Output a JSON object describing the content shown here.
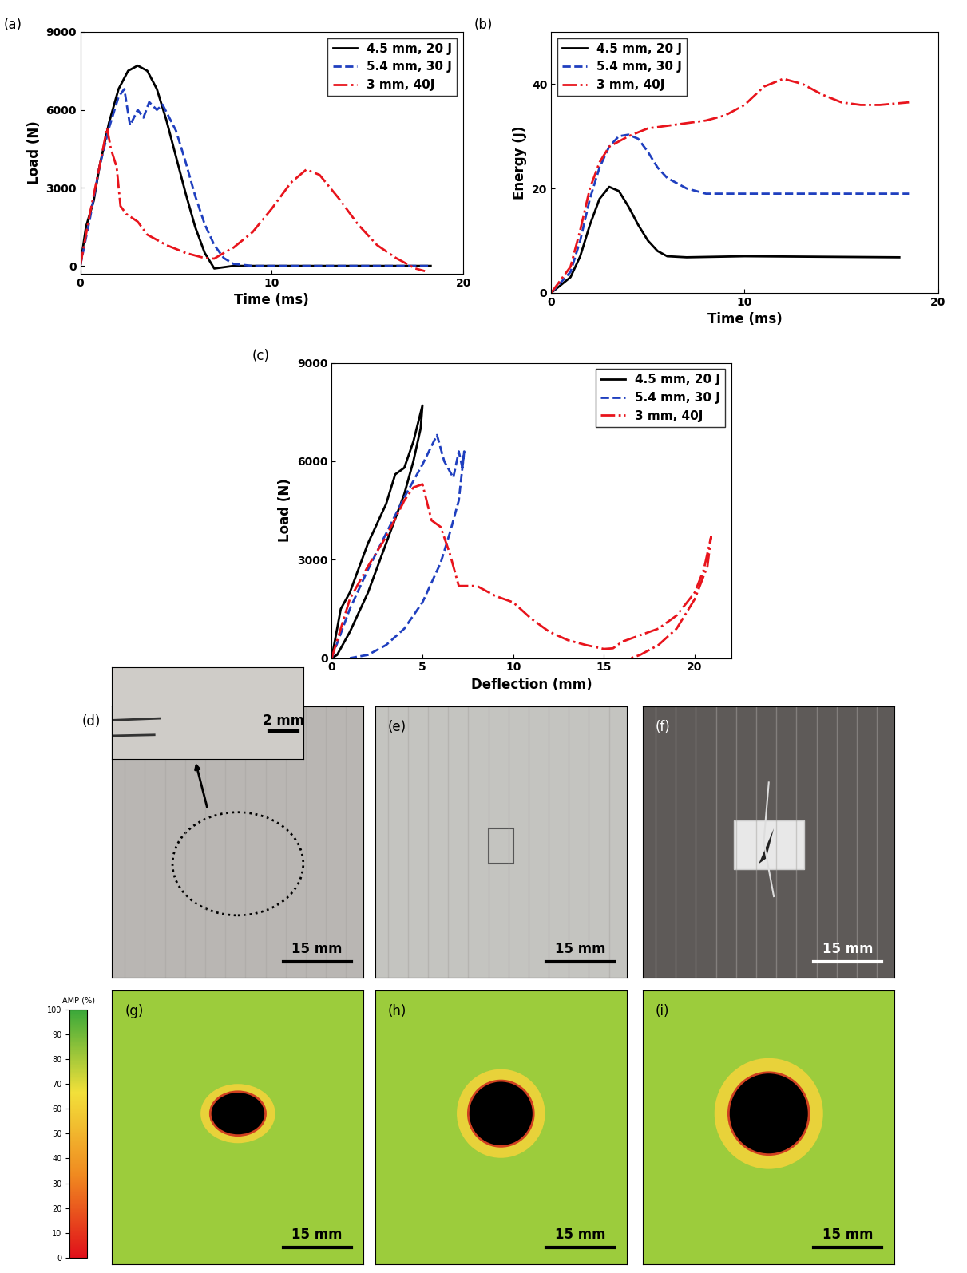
{
  "chart_data": [
    {
      "type": "line",
      "title": "(a)",
      "x_label": "Time (ms)",
      "y_label": "Load (N)",
      "xlim": [
        0,
        20
      ],
      "ylim": [
        -300,
        9000
      ],
      "xticks": [
        0,
        10,
        20
      ],
      "yticks": [
        0,
        3000,
        6000,
        9000
      ],
      "legend": "upper right",
      "series": [
        {
          "name": "4.5 mm, 20 J",
          "color": "#000000",
          "line_style": "solid",
          "x": [
            0,
            0.3,
            0.7,
            1,
            1.5,
            2,
            2.5,
            3,
            3.5,
            4,
            4.5,
            5,
            5.5,
            6,
            6.5,
            7,
            7.5,
            8,
            10,
            15,
            18.3
          ],
          "values": [
            0,
            1500,
            2500,
            3800,
            5500,
            6800,
            7500,
            7700,
            7500,
            6800,
            5600,
            4200,
            2800,
            1500,
            500,
            -100,
            -50,
            0,
            0,
            0,
            0
          ]
        },
        {
          "name": "5.4 mm, 30 J",
          "color": "#1f3fbf",
          "line_style": "dashed",
          "x": [
            0,
            0.5,
            1,
            1.5,
            2,
            2.3,
            2.6,
            3,
            3.3,
            3.6,
            4,
            4.3,
            5,
            5.5,
            6,
            6.5,
            7,
            7.5,
            8,
            9,
            18.3
          ],
          "values": [
            0,
            1800,
            3800,
            5300,
            6500,
            6800,
            5400,
            6000,
            5700,
            6300,
            6000,
            6200,
            5200,
            4000,
            2700,
            1600,
            800,
            300,
            80,
            0,
            0
          ]
        },
        {
          "name": "3 mm, 40J",
          "color": "#e8141c",
          "line_style": "dashdot",
          "x": [
            0,
            0.5,
            1,
            1.4,
            1.6,
            1.9,
            2.1,
            2.4,
            3,
            3.5,
            4.5,
            5.5,
            6.5,
            7,
            7.5,
            8,
            9,
            10,
            11,
            11.8,
            12.5,
            13.5,
            14.5,
            15.5,
            16.5,
            17.5,
            18
          ],
          "values": [
            0,
            2000,
            3800,
            5300,
            4500,
            3800,
            2300,
            2000,
            1700,
            1200,
            800,
            500,
            300,
            280,
            500,
            700,
            1300,
            2200,
            3200,
            3700,
            3500,
            2600,
            1600,
            800,
            300,
            -100,
            -200
          ]
        }
      ]
    },
    {
      "type": "line",
      "title": "(b)",
      "x_label": "Time (ms)",
      "y_label": "Energy (J)",
      "xlim": [
        0,
        20
      ],
      "ylim": [
        0,
        50
      ],
      "xticks": [
        0,
        10,
        20
      ],
      "yticks": [
        0,
        20,
        40
      ],
      "legend": "upper left",
      "series": [
        {
          "name": "4.5 mm, 20 J",
          "color": "#000000",
          "line_style": "solid",
          "x": [
            0,
            1,
            1.5,
            2,
            2.5,
            3,
            3.5,
            4,
            4.5,
            5,
            5.5,
            6,
            7,
            10,
            18
          ],
          "values": [
            0,
            3,
            7,
            13,
            18,
            20.3,
            19.5,
            16.5,
            13,
            10,
            8,
            7,
            6.8,
            7,
            6.8
          ]
        },
        {
          "name": "5.4 mm, 30 J",
          "color": "#1f3fbf",
          "line_style": "dashed",
          "x": [
            0,
            1,
            1.5,
            2,
            2.5,
            3,
            3.5,
            4,
            4.5,
            5,
            5.5,
            6,
            7,
            8,
            10,
            18.5
          ],
          "values": [
            0,
            4,
            10,
            18,
            24,
            28,
            30,
            30.3,
            29.5,
            27,
            24,
            22,
            20,
            19,
            19,
            19
          ]
        },
        {
          "name": "3 mm, 40J",
          "color": "#e8141c",
          "line_style": "dashdot",
          "x": [
            0,
            1,
            1.5,
            2,
            2.5,
            3,
            4,
            5,
            6,
            7,
            8,
            9,
            10,
            11,
            12,
            13,
            14,
            15,
            16,
            17,
            18.5
          ],
          "values": [
            0,
            5,
            12,
            20,
            25,
            28,
            30,
            31.5,
            32,
            32.5,
            33,
            34,
            36,
            39.5,
            41,
            40,
            38,
            36.5,
            36,
            36,
            36.5
          ]
        }
      ]
    },
    {
      "type": "line",
      "title": "(c)",
      "x_label": "Deflection (mm)",
      "y_label": "Load (N)",
      "xlim": [
        0,
        22
      ],
      "ylim": [
        0,
        9000
      ],
      "xticks": [
        0,
        5,
        10,
        15,
        20
      ],
      "yticks": [
        0,
        3000,
        6000,
        9000
      ],
      "legend": "upper right",
      "series": [
        {
          "name": "4.5 mm, 20 J",
          "color": "#000000",
          "line_style": "solid",
          "x": [
            0,
            0.5,
            1,
            2,
            3,
            3.5,
            4,
            4.5,
            5,
            4.9,
            4.5,
            4,
            3,
            2,
            1,
            0.3,
            0
          ],
          "values": [
            0,
            1500,
            2000,
            3500,
            4700,
            5600,
            5800,
            6600,
            7700,
            7000,
            6000,
            5000,
            3500,
            2000,
            800,
            100,
            0
          ]
        },
        {
          "name": "5.4 mm, 30 J",
          "color": "#1f3fbf",
          "line_style": "dashed",
          "x": [
            0,
            1,
            2,
            3,
            4,
            5,
            5.8,
            6.2,
            6.7,
            7,
            7.2,
            7.3,
            7,
            6.5,
            6,
            5,
            4,
            3,
            2,
            1
          ],
          "values": [
            0,
            1500,
            2700,
            3800,
            4900,
            5900,
            6800,
            6000,
            5500,
            6300,
            5800,
            6300,
            4800,
            3800,
            2900,
            1700,
            900,
            400,
            100,
            0
          ]
        },
        {
          "name": "3 mm, 40J",
          "color": "#e8141c",
          "line_style": "dashdot",
          "x": [
            0,
            1,
            2,
            3,
            4,
            4.5,
            5,
            5.5,
            6,
            6.5,
            7,
            8,
            9,
            10,
            11,
            12,
            13,
            14,
            15,
            15.5,
            16,
            17,
            18,
            19,
            20,
            20.5,
            20.9,
            20.7,
            20,
            19,
            18,
            17,
            16.5
          ],
          "values": [
            0,
            1800,
            2800,
            3700,
            4800,
            5200,
            5300,
            4200,
            4000,
            3200,
            2200,
            2200,
            1900,
            1700,
            1200,
            800,
            550,
            400,
            280,
            300,
            500,
            700,
            900,
            1300,
            2000,
            2700,
            3700,
            2800,
            1800,
            900,
            400,
            100,
            0
          ]
        }
      ]
    }
  ],
  "panels": [
    {
      "label": "(d)",
      "kind": "photo",
      "scale_bar": "15 mm",
      "inset": {
        "scale_bar": "2 mm"
      }
    },
    {
      "label": "(e)",
      "kind": "photo",
      "scale_bar": "15 mm"
    },
    {
      "label": "(f)",
      "kind": "photo",
      "scale_bar": "15 mm"
    },
    {
      "label": "(g)",
      "kind": "c-scan",
      "scale_bar": "15 mm"
    },
    {
      "label": "(h)",
      "kind": "c-scan",
      "scale_bar": "15 mm"
    },
    {
      "label": "(i)",
      "kind": "c-scan",
      "scale_bar": "15 mm"
    }
  ],
  "colorbar": {
    "label": "AMP (%)",
    "range": [
      0,
      100
    ],
    "ticks": [
      0,
      10,
      20,
      30,
      40,
      50,
      60,
      70,
      80,
      90,
      100
    ]
  }
}
